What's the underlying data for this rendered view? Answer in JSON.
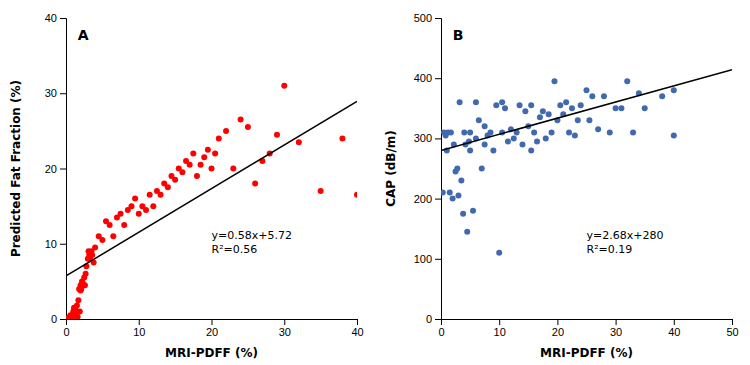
{
  "chart_data": [
    {
      "type": "scatter",
      "title": "A",
      "xlabel": "MRI-PDFF (%)",
      "ylabel": "Predicted Fat Fraction (%)",
      "xlim": [
        0,
        40
      ],
      "ylim": [
        0,
        40
      ],
      "xticks": [
        0,
        10,
        20,
        30,
        40
      ],
      "yticks": [
        0,
        10,
        20,
        30,
        40
      ],
      "grid": false,
      "annotations": [
        "y=0.58x+5.72",
        "R²=0.56"
      ],
      "series": [
        {
          "type": "scatter",
          "color": "#FF0000",
          "x": [
            0.2,
            0.4,
            0.5,
            0.6,
            0.8,
            1.0,
            1.0,
            1.1,
            1.2,
            1.3,
            1.3,
            1.4,
            1.5,
            1.6,
            1.7,
            1.8,
            1.9,
            2.0,
            2.0,
            2.1,
            2.2,
            2.3,
            2.5,
            2.6,
            2.7,
            2.8,
            3.0,
            3.1,
            3.2,
            3.3,
            3.5,
            3.6,
            3.8,
            4.0,
            4.5,
            5.0,
            5.5,
            6.0,
            6.5,
            7.0,
            7.5,
            8.0,
            8.5,
            9.0,
            9.5,
            10.0,
            10.5,
            11.0,
            11.5,
            12.0,
            12.5,
            13.0,
            13.5,
            14.0,
            14.5,
            15.0,
            15.5,
            16.0,
            16.5,
            17.0,
            17.5,
            18.0,
            18.5,
            19.0,
            19.5,
            20.0,
            20.5,
            21.0,
            22.0,
            23.0,
            24.0,
            25.0,
            26.0,
            27.0,
            28.0,
            29.0,
            30.0,
            32.0,
            35.0,
            38.0,
            40.0
          ],
          "values": [
            0.0,
            0.2,
            0.0,
            0.5,
            0.1,
            1.0,
            0.2,
            1.5,
            0.8,
            1.2,
            0.0,
            0.5,
            1.8,
            0.3,
            2.5,
            4.0,
            1.0,
            3.8,
            4.5,
            4.0,
            5.0,
            4.8,
            5.5,
            4.5,
            6.0,
            7.0,
            8.0,
            9.0,
            8.5,
            8.0,
            9.0,
            8.5,
            7.5,
            9.5,
            11.0,
            10.5,
            13.0,
            12.5,
            11.0,
            13.5,
            14.0,
            12.5,
            14.5,
            15.0,
            16.0,
            14.0,
            15.0,
            14.5,
            16.5,
            15.0,
            17.0,
            16.5,
            18.0,
            17.5,
            19.0,
            18.5,
            20.0,
            19.5,
            21.0,
            20.5,
            22.0,
            19.0,
            20.5,
            21.5,
            22.5,
            20.0,
            22.0,
            24.0,
            25.0,
            20.0,
            26.5,
            25.5,
            18.0,
            21.0,
            22.0,
            24.5,
            31.0,
            23.5,
            17.0,
            24.0,
            16.5
          ]
        },
        {
          "type": "line",
          "color": "#000000",
          "x": [
            0,
            40
          ],
          "values": [
            5.72,
            28.92
          ]
        }
      ]
    },
    {
      "type": "scatter",
      "title": "B",
      "xlabel": "MRI-PDFF (%)",
      "ylabel": "CAP (dB/m)",
      "xlim": [
        0,
        50
      ],
      "ylim": [
        0,
        500
      ],
      "xticks": [
        0,
        10,
        20,
        30,
        40,
        50
      ],
      "yticks": [
        0,
        100,
        200,
        300,
        400,
        500
      ],
      "grid": false,
      "annotations": [
        "y=2.68x+280",
        "R²=0.19"
      ],
      "series": [
        {
          "type": "scatter",
          "color": "#4169B0",
          "x": [
            0.3,
            0.5,
            0.8,
            1.0,
            1.2,
            1.5,
            1.7,
            2.0,
            2.2,
            2.5,
            2.8,
            3.0,
            3.2,
            3.5,
            3.8,
            4.0,
            4.2,
            4.5,
            4.8,
            5.0,
            5.0,
            5.5,
            6.0,
            6.0,
            6.5,
            7.0,
            7.5,
            7.5,
            8.0,
            8.5,
            9.0,
            9.5,
            10.0,
            10.5,
            10.5,
            11.0,
            11.5,
            12.0,
            12.5,
            13.0,
            13.5,
            14.0,
            14.5,
            15.0,
            15.5,
            15.5,
            16.0,
            16.5,
            17.0,
            17.5,
            18.0,
            18.5,
            19.0,
            19.5,
            20.0,
            20.5,
            21.0,
            21.5,
            22.0,
            22.5,
            23.0,
            23.5,
            24.0,
            25.0,
            25.5,
            26.0,
            27.0,
            28.0,
            29.0,
            30.0,
            31.0,
            32.0,
            33.0,
            34.0,
            35.0,
            38.0,
            40.0,
            40.0
          ],
          "values": [
            210,
            310,
            305,
            280,
            310,
            210,
            310,
            200,
            290,
            245,
            250,
            205,
            360,
            230,
            175,
            310,
            290,
            145,
            295,
            280,
            310,
            180,
            300,
            360,
            330,
            250,
            290,
            320,
            305,
            310,
            280,
            355,
            110,
            310,
            360,
            350,
            295,
            315,
            300,
            310,
            355,
            290,
            345,
            320,
            280,
            355,
            310,
            295,
            335,
            345,
            300,
            340,
            310,
            395,
            330,
            355,
            340,
            360,
            310,
            350,
            305,
            330,
            355,
            380,
            330,
            370,
            315,
            370,
            310,
            350,
            350,
            395,
            310,
            375,
            350,
            370,
            305,
            380
          ]
        },
        {
          "type": "line",
          "color": "#000000",
          "x": [
            0,
            50
          ],
          "values": [
            280,
            414
          ]
        }
      ]
    }
  ]
}
